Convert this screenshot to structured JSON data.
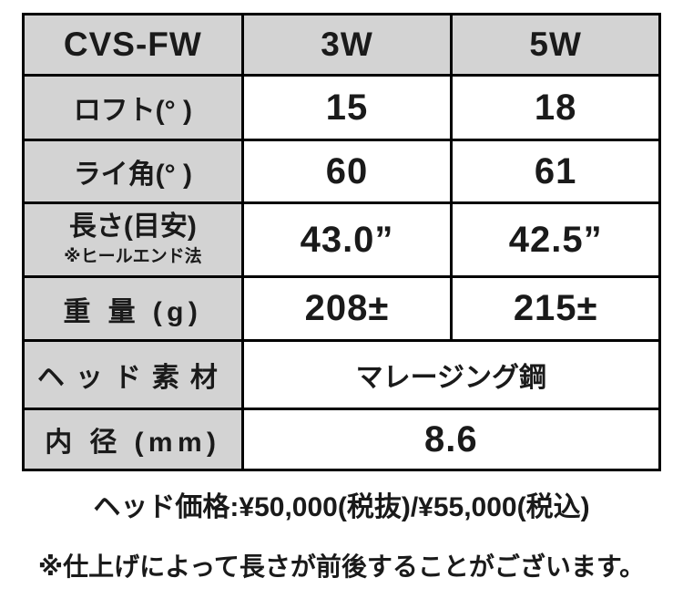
{
  "table": {
    "model": "CVS-FW",
    "columns": [
      "3W",
      "5W"
    ],
    "rows": [
      {
        "label": "ロフト(° )",
        "values": [
          "15",
          "18"
        ]
      },
      {
        "label": "ライ角(° )",
        "values": [
          "60",
          "61"
        ]
      },
      {
        "label": "長さ(目安)",
        "sublabel": "※ヒールエンド法",
        "values": [
          "43.0”",
          "42.5”"
        ]
      },
      {
        "label": "重 量 (g)",
        "values": [
          "208±",
          "215±"
        ]
      },
      {
        "label": "ヘッド素材",
        "merged_value": "マレージング鋼"
      },
      {
        "label": "内 径 (mm)",
        "merged_value": "8.6"
      }
    ]
  },
  "footer": {
    "price_line": "ヘッド価格:¥50,000(税抜)/¥55,000(税込)",
    "note_line": "※仕上げによって長さが前後することがございます。"
  },
  "colors": {
    "cell_fill_gray": "#d3d3d3",
    "border": "#000000",
    "text": "#1a1a1a",
    "background": "#ffffff"
  }
}
